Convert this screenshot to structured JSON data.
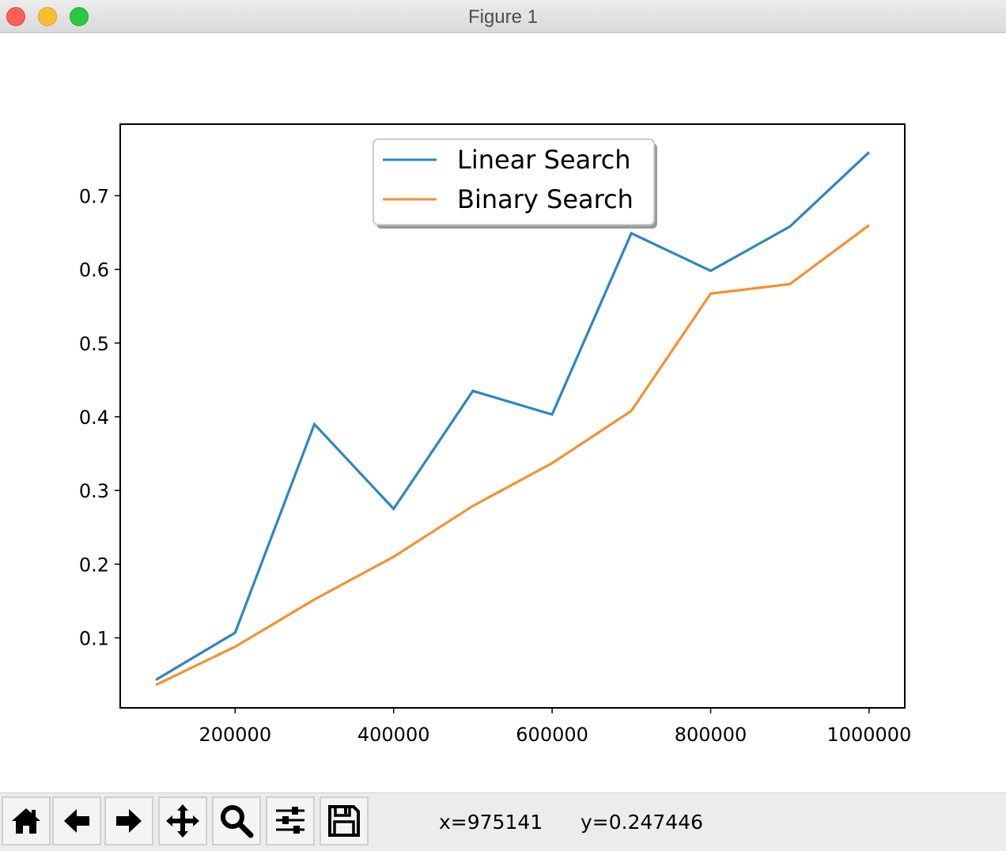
{
  "window": {
    "title": "Figure 1"
  },
  "colors": {
    "linear": "#2e86c1",
    "binary": "#f5922f"
  },
  "chart_data": {
    "type": "line",
    "title": "",
    "xlabel": "",
    "ylabel": "",
    "x": [
      100000,
      200000,
      300000,
      400000,
      500000,
      600000,
      700000,
      800000,
      900000,
      1000000
    ],
    "series": [
      {
        "name": "Linear Search",
        "values": [
          0.043,
          0.107,
          0.39,
          0.275,
          0.435,
          0.403,
          0.649,
          0.598,
          0.658,
          0.759
        ]
      },
      {
        "name": "Binary Search",
        "values": [
          0.036,
          0.088,
          0.152,
          0.21,
          0.279,
          0.337,
          0.408,
          0.567,
          0.58,
          0.66
        ]
      }
    ],
    "xlim": [
      55000,
      1045000
    ],
    "ylim": [
      0.005,
      0.797
    ],
    "xticks": [
      200000,
      400000,
      600000,
      800000,
      1000000
    ],
    "xtick_labels": [
      "200000",
      "400000",
      "600000",
      "800000",
      "1000000"
    ],
    "yticks": [
      0.1,
      0.2,
      0.3,
      0.4,
      0.5,
      0.6,
      0.7
    ],
    "ytick_labels": [
      "0.1",
      "0.2",
      "0.3",
      "0.4",
      "0.5",
      "0.6",
      "0.7"
    ],
    "grid": false,
    "legend_position": "upper center"
  },
  "toolbar": {
    "tools": [
      "home-icon",
      "back-arrow-icon",
      "forward-arrow-icon",
      "pan-icon",
      "zoom-icon",
      "configure-subplots-icon",
      "save-icon"
    ],
    "coord_x": "x=975141",
    "coord_y": "y=0.247446"
  }
}
